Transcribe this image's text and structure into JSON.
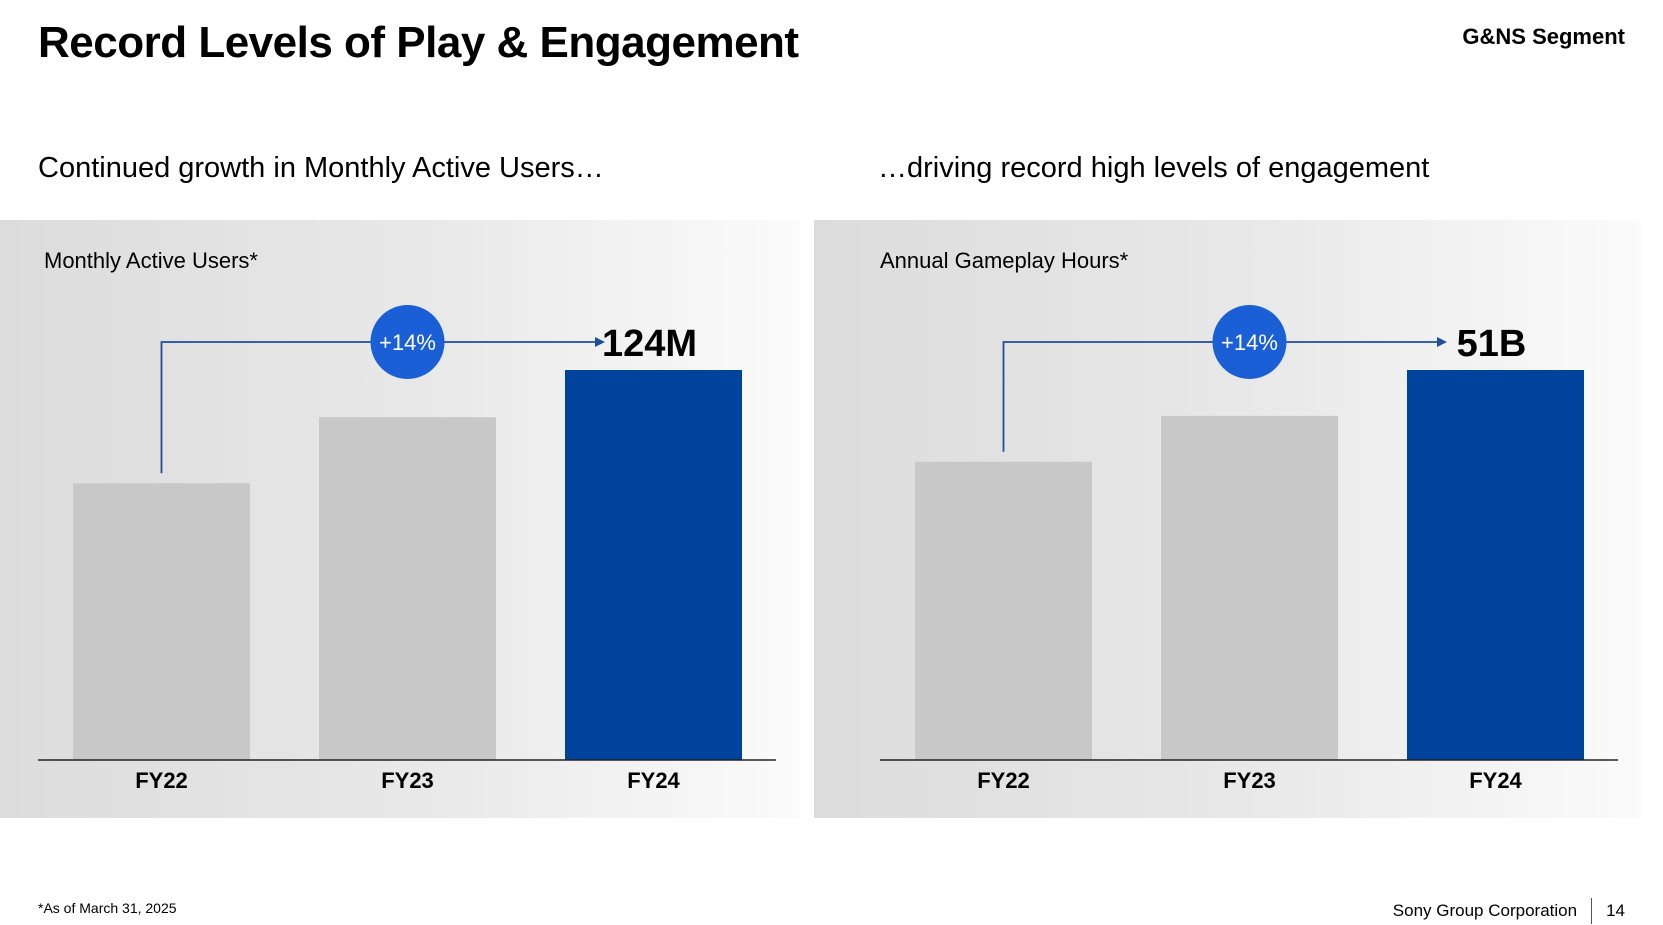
{
  "header": {
    "title": "Record Levels of Play & Engagement",
    "segment": "G&NS Segment"
  },
  "left": {
    "subtitle": "Continued growth in Monthly Active Users…"
  },
  "right": {
    "subtitle": "…driving record high levels of engagement"
  },
  "colors": {
    "bar_gray": "#c8c8c8",
    "bar_blue": "#00439c",
    "badge_blue": "#1a5fd6",
    "arrow_blue": "#1f4e9c"
  },
  "chart_data": [
    {
      "type": "bar",
      "title": "Monthly Active Users*",
      "categories": [
        "FY22",
        "FY23",
        "FY24"
      ],
      "values": [
        88,
        109,
        124
      ],
      "ylim": [
        0,
        124
      ],
      "value_label": "124M",
      "growth_badge": "+14%",
      "highlight_index": 2
    },
    {
      "type": "bar",
      "title": "Annual Gameplay Hours*",
      "categories": [
        "FY22",
        "FY23",
        "FY24"
      ],
      "values": [
        39,
        45,
        51
      ],
      "ylim": [
        0,
        51
      ],
      "value_label": "51B",
      "growth_badge": "+14%",
      "highlight_index": 2
    }
  ],
  "footer": {
    "footnote": "*As of March 31, 2025",
    "company": "Sony Group Corporation",
    "page_number": "14"
  }
}
